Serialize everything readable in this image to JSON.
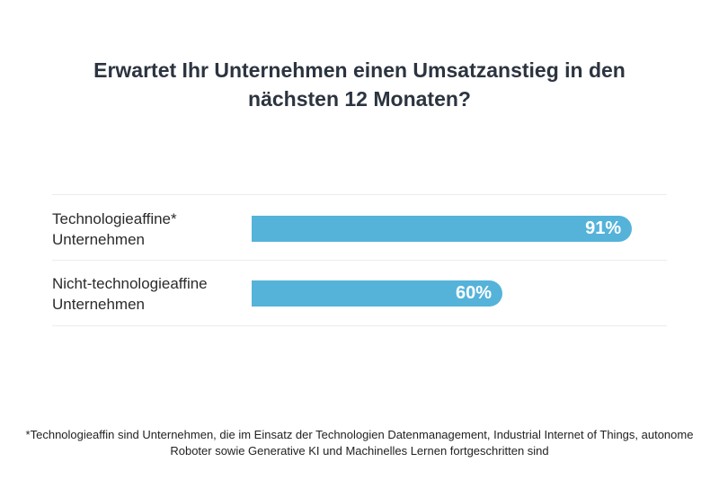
{
  "chart_data": {
    "type": "bar",
    "orientation": "horizontal",
    "title": "Erwartet Ihr Unternehmen einen Umsatzanstieg in den nächsten 12 Monaten?",
    "categories": [
      "Technologieaffine* Unternehmen",
      "Nicht-technologieaffine Unternehmen"
    ],
    "category_lines": [
      [
        "Technologieaffine*",
        "Unternehmen"
      ],
      [
        "Nicht-technologieaffine",
        "Unternehmen"
      ]
    ],
    "values": [
      91,
      60
    ],
    "value_labels": [
      "91%",
      "60%"
    ],
    "xlim": [
      0,
      100
    ],
    "grid": false,
    "bar_color": "#55b3da",
    "footnote": "*Technologieaffin sind Unternehmen, die im Einsatz der Technologien Datenmanagement, Industrial Internet of Things, autonome Roboter sowie Generative KI und Machinelles Lernen fortgeschritten sind"
  }
}
